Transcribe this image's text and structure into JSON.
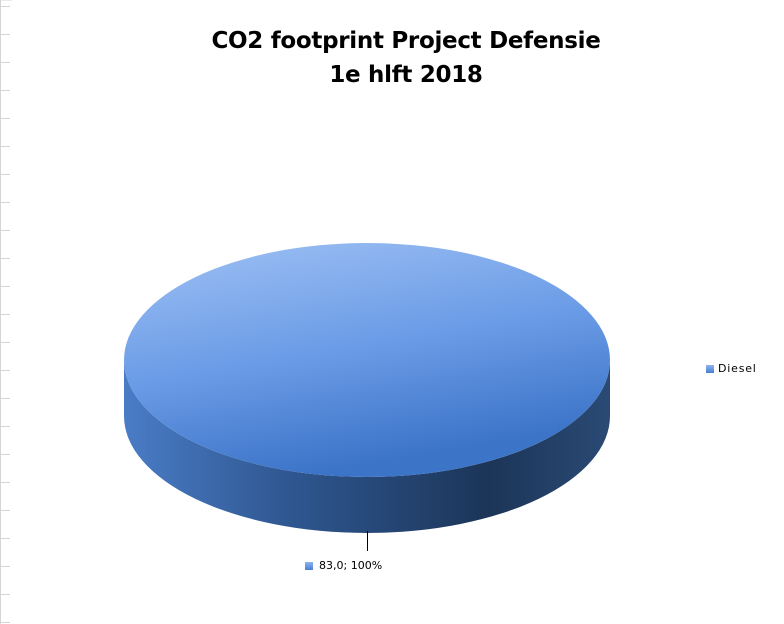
{
  "chart_data": {
    "type": "pie",
    "title": "CO2 footprint Project Defensie",
    "subtitle": "1e hlft 2018",
    "categories": [
      "Diesel"
    ],
    "values": [
      83.0
    ],
    "data_labels": [
      "83,0; 100%"
    ],
    "legend": {
      "entries": [
        "Diesel"
      ],
      "placement": "right"
    },
    "style": "3d",
    "colors": {
      "slice": "#5a8ee0",
      "slice_light": "#9bbdf3",
      "slice_dark": "#1c3558"
    }
  }
}
